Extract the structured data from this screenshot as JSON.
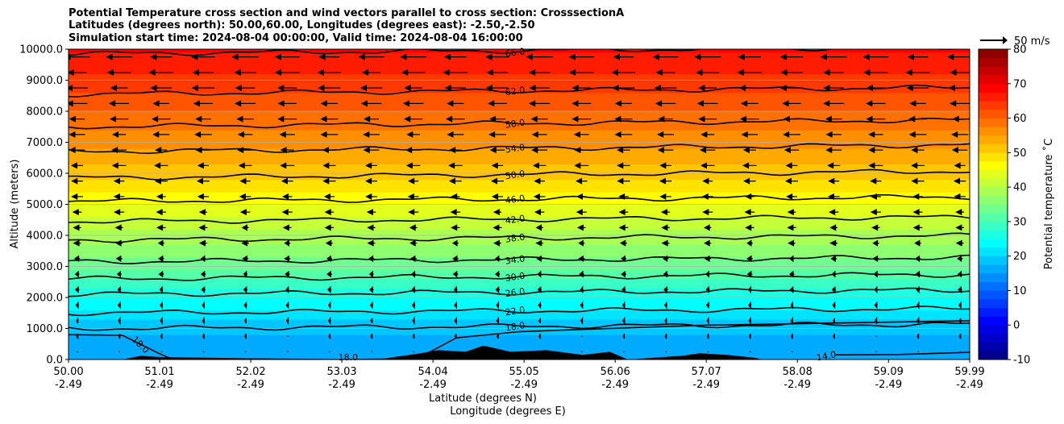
{
  "title_lines": [
    "Potential Temperature cross section and wind vectors parallel to cross section: CrosssectionA",
    "Latitudes (degrees north): 50.00,60.00, Longitudes (degrees east): -2.50,-2.50",
    "Simulation start time: 2024-08-04 00:00:00, Valid time: 2024-08-04 16:00:00"
  ],
  "chart_data": {
    "type": "heatmap",
    "title": "Potential Temperature cross section and wind vectors parallel to cross section: CrosssectionA",
    "ylabel": "Altitude (meters)",
    "xlabel_lat": "Latitude (degrees N)",
    "xlabel_lon": "Longitude (degrees E)",
    "ylim": [
      0,
      10000
    ],
    "xlim": [
      50.0,
      59.99
    ],
    "y_ticks": [
      "0.0",
      "1000.0",
      "2000.0",
      "3000.0",
      "4000.0",
      "5000.0",
      "6000.0",
      "7000.0",
      "8000.0",
      "9000.0",
      "10000.0"
    ],
    "x_ticks": [
      {
        "lat": "50.00",
        "lon": "-2.49"
      },
      {
        "lat": "51.01",
        "lon": "-2.49"
      },
      {
        "lat": "52.02",
        "lon": "-2.49"
      },
      {
        "lat": "53.03",
        "lon": "-2.49"
      },
      {
        "lat": "54.04",
        "lon": "-2.49"
      },
      {
        "lat": "55.05",
        "lon": "-2.49"
      },
      {
        "lat": "56.06",
        "lon": "-2.49"
      },
      {
        "lat": "57.07",
        "lon": "-2.49"
      },
      {
        "lat": "58.08",
        "lon": "-2.49"
      },
      {
        "lat": "59.09",
        "lon": "-2.49"
      },
      {
        "lat": "59.99",
        "lon": "-2.49"
      }
    ],
    "colorbar": {
      "label": "Potential temperature $^\\circ$C",
      "label_display": "Potential temperature ˚C",
      "min": -10,
      "max": 80,
      "ticks": [
        "-10",
        "0",
        "10",
        "20",
        "30",
        "40",
        "50",
        "60",
        "70",
        "80"
      ],
      "colormap": "jet"
    },
    "contours": [
      {
        "value": 14.0,
        "label": "14.0"
      },
      {
        "value": 18.0,
        "label": "18.0"
      },
      {
        "value": 22.0,
        "label": "22.0"
      },
      {
        "value": 26.0,
        "label": "26.0"
      },
      {
        "value": 30.0,
        "label": "30.0"
      },
      {
        "value": 34.0,
        "label": "34.0"
      },
      {
        "value": 38.0,
        "label": "38.0"
      },
      {
        "value": 42.0,
        "label": "42.0"
      },
      {
        "value": 46.0,
        "label": "46.0"
      },
      {
        "value": 50.0,
        "label": "50.0"
      },
      {
        "value": 54.0,
        "label": "54.0"
      },
      {
        "value": 58.0,
        "label": "58.0"
      },
      {
        "value": 62.0,
        "label": "62.0"
      },
      {
        "value": 66.0,
        "label": "66.0"
      }
    ],
    "contour_altitudes_m": [
      {
        "value": 18,
        "alt": 1000
      },
      {
        "value": 22,
        "alt": 1500
      },
      {
        "value": 26,
        "alt": 2100
      },
      {
        "value": 30,
        "alt": 2600
      },
      {
        "value": 34,
        "alt": 3150
      },
      {
        "value": 38,
        "alt": 3850
      },
      {
        "value": 42,
        "alt": 4450
      },
      {
        "value": 46,
        "alt": 5100
      },
      {
        "value": 50,
        "alt": 5850
      },
      {
        "value": 54,
        "alt": 6700
      },
      {
        "value": 58,
        "alt": 7500
      },
      {
        "value": 62,
        "alt": 8550
      },
      {
        "value": 66,
        "alt": 9850
      }
    ],
    "theta_profile": [
      {
        "alt": 0,
        "theta": 15
      },
      {
        "alt": 1000,
        "theta": 18
      },
      {
        "alt": 2000,
        "theta": 25
      },
      {
        "alt": 3000,
        "theta": 33
      },
      {
        "alt": 4000,
        "theta": 39
      },
      {
        "alt": 5000,
        "theta": 45
      },
      {
        "alt": 6000,
        "theta": 51
      },
      {
        "alt": 7000,
        "theta": 56
      },
      {
        "alt": 8000,
        "theta": 60
      },
      {
        "alt": 9000,
        "theta": 64
      },
      {
        "alt": 10000,
        "theta": 68
      }
    ],
    "terrain": [
      {
        "lat": 50.6,
        "alt": 0
      },
      {
        "lat": 50.8,
        "alt": 120
      },
      {
        "lat": 51.0,
        "alt": 80
      },
      {
        "lat": 51.5,
        "alt": 60
      },
      {
        "lat": 52.0,
        "alt": 40
      },
      {
        "lat": 53.0,
        "alt": 20
      },
      {
        "lat": 53.5,
        "alt": 30
      },
      {
        "lat": 53.9,
        "alt": 200
      },
      {
        "lat": 54.1,
        "alt": 300
      },
      {
        "lat": 54.4,
        "alt": 250
      },
      {
        "lat": 54.6,
        "alt": 450
      },
      {
        "lat": 54.9,
        "alt": 250
      },
      {
        "lat": 55.3,
        "alt": 300
      },
      {
        "lat": 55.7,
        "alt": 150
      },
      {
        "lat": 56.0,
        "alt": 250
      },
      {
        "lat": 56.2,
        "alt": 0
      },
      {
        "lat": 56.8,
        "alt": 120
      },
      {
        "lat": 57.0,
        "alt": 200
      },
      {
        "lat": 57.3,
        "alt": 150
      },
      {
        "lat": 57.6,
        "alt": 60
      },
      {
        "lat": 57.7,
        "alt": 0
      }
    ],
    "wind_vectors": {
      "reference_label": "50 m/s",
      "reference_speed_ms": 50,
      "direction": "southward (negative along cross section)",
      "profile": [
        {
          "alt": 0,
          "speed": 1
        },
        {
          "alt": 1000,
          "speed": 3
        },
        {
          "alt": 2000,
          "speed": 5
        },
        {
          "alt": 3000,
          "speed": 8
        },
        {
          "alt": 4000,
          "speed": 12
        },
        {
          "alt": 5000,
          "speed": 16
        },
        {
          "alt": 6000,
          "speed": 20
        },
        {
          "alt": 7000,
          "speed": 25
        },
        {
          "alt": 8000,
          "speed": 30
        },
        {
          "alt": 9000,
          "speed": 36
        },
        {
          "alt": 10000,
          "speed": 42
        }
      ]
    },
    "grid": true,
    "legend": "colorbar right"
  }
}
